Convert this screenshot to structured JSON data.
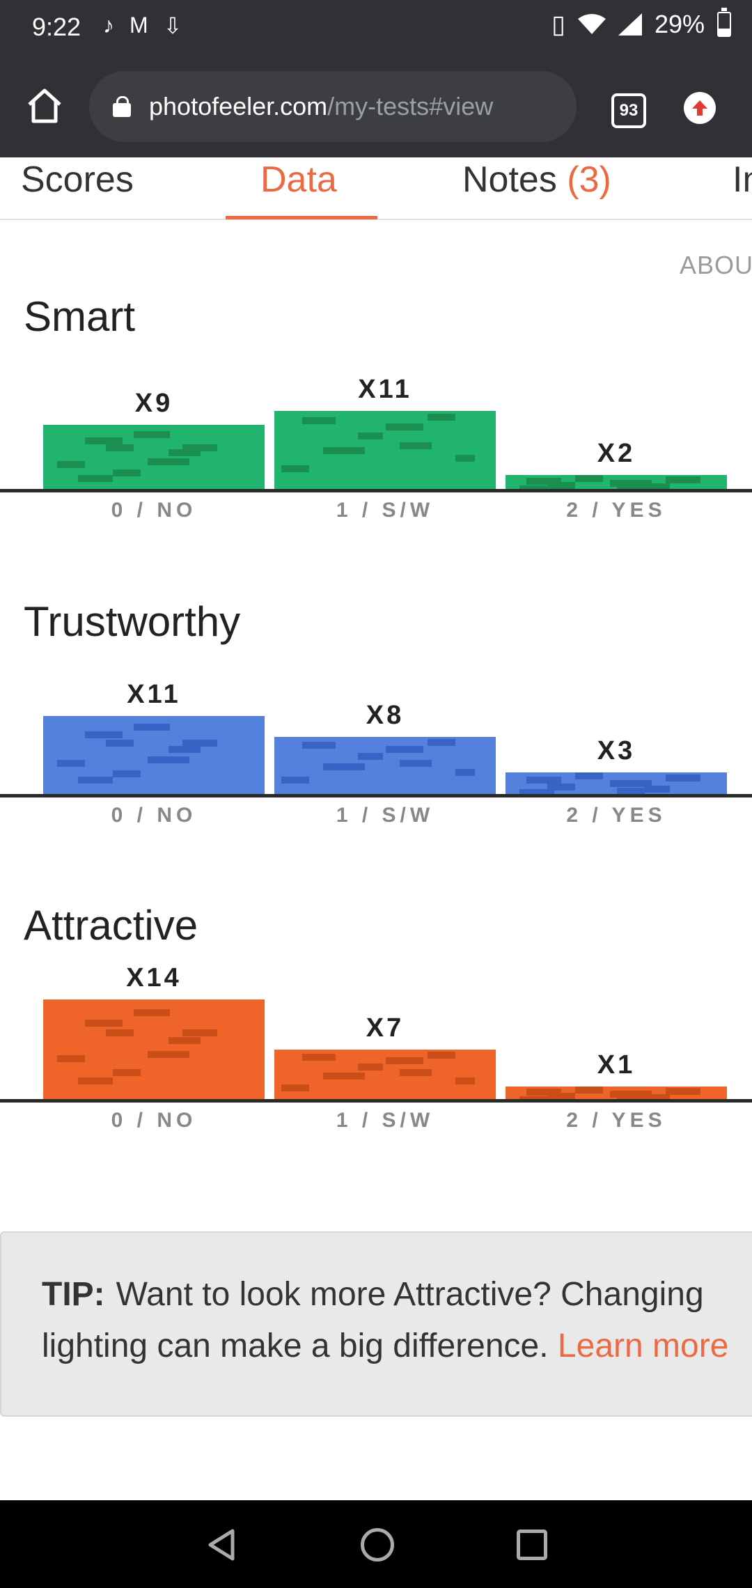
{
  "status_bar": {
    "time": "9:22",
    "left_icons": [
      "tiktok-icon",
      "gmail-icon",
      "download-icon"
    ],
    "right_icons": [
      "vibrate-icon",
      "wifi-icon",
      "signal-icon",
      "battery-icon"
    ],
    "battery": "29%"
  },
  "browser": {
    "url_host": "photofeeler.com",
    "url_path": "/my-tests#view",
    "tab_count": "93"
  },
  "tabs": [
    {
      "label": "Scores"
    },
    {
      "label": "Data",
      "active": true
    },
    {
      "label": "Notes ",
      "count": "(3)"
    },
    {
      "label": "In"
    }
  ],
  "about_label": "ABOUT",
  "sections": [
    {
      "title": "Smart",
      "color": "#21b46f",
      "dash_color": "#1a8f4f",
      "bars": [
        {
          "category": "0 / NO",
          "count_label": "X9",
          "count": 9
        },
        {
          "category": "1 / S/W",
          "count_label": "X11",
          "count": 11
        },
        {
          "category": "2 / YES",
          "count_label": "X2",
          "count": 2
        }
      ]
    },
    {
      "title": "Trustworthy",
      "color": "#5580db",
      "dash_color": "#3a63c6",
      "bars": [
        {
          "category": "0 / NO",
          "count_label": "X11",
          "count": 11
        },
        {
          "category": "1 / S/W",
          "count_label": "X8",
          "count": 8
        },
        {
          "category": "2 / YES",
          "count_label": "X3",
          "count": 3
        }
      ]
    },
    {
      "title": "Attractive",
      "color": "#ef6428",
      "dash_color": "#c94e17",
      "bars": [
        {
          "category": "0 / NO",
          "count_label": "X14",
          "count": 14
        },
        {
          "category": "1 / S/W",
          "count_label": "X7",
          "count": 7
        },
        {
          "category": "2 / YES",
          "count_label": "X1",
          "count": 1
        }
      ]
    }
  ],
  "tip": {
    "prefix": "TIP:",
    "line1": "Want to look more Attractive? Changing",
    "line2": "lighting can make a big difference.",
    "link": "Learn more"
  }
}
